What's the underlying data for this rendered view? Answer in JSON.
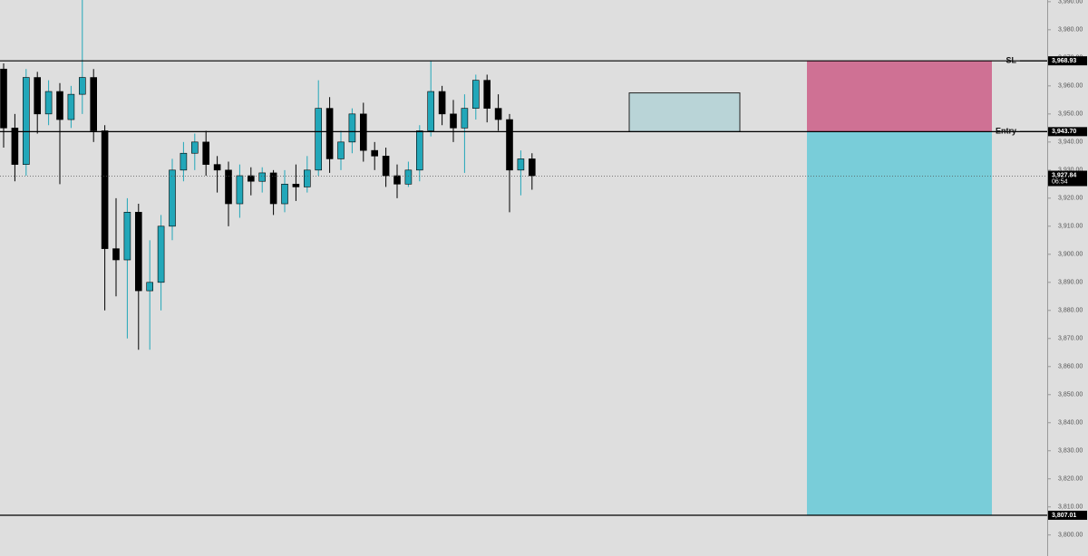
{
  "chart_data": {
    "type": "candlestick",
    "open": [
      3966,
      3945,
      3932,
      3963,
      3950,
      3958,
      3948,
      3957,
      3963,
      3944,
      3902,
      3898,
      3915,
      3887,
      3890,
      3910,
      3930,
      3936,
      3940,
      3932,
      3930,
      3918,
      3928,
      3926,
      3929,
      3918,
      3925,
      3924,
      3930,
      3952,
      3934,
      3940,
      3950,
      3937,
      3935,
      3928,
      3925,
      3930,
      3944,
      3958,
      3950,
      3945,
      3952,
      3962,
      3952,
      3948,
      3930,
      3934
    ],
    "high": [
      3968,
      3950,
      3966,
      3965,
      3962,
      3961,
      3960,
      3995,
      3966,
      3946,
      3920,
      3920,
      3918,
      3905,
      3914,
      3934,
      3940,
      3943,
      3944,
      3935,
      3933,
      3932,
      3931,
      3931,
      3930,
      3930,
      3932,
      3935,
      3962,
      3956,
      3944,
      3952,
      3954,
      3940,
      3938,
      3932,
      3933,
      3946,
      3969,
      3960,
      3955,
      3957,
      3964,
      3964,
      3957,
      3950,
      3937,
      3936
    ],
    "low": [
      3938,
      3926,
      3928,
      3943,
      3946,
      3925,
      3945,
      3950,
      3940,
      3880,
      3885,
      3870,
      3866,
      3866,
      3880,
      3905,
      3926,
      3930,
      3928,
      3922,
      3910,
      3913,
      3921,
      3922,
      3914,
      3915,
      3919,
      3922,
      3928,
      3929,
      3930,
      3936,
      3933,
      3930,
      3924,
      3920,
      3924,
      3926,
      3942,
      3946,
      3940,
      3929,
      3948,
      3947,
      3944,
      3915,
      3921,
      3923
    ],
    "close": [
      3945,
      3932,
      3963,
      3950,
      3958,
      3948,
      3957,
      3963,
      3944,
      3902,
      3898,
      3915,
      3887,
      3890,
      3910,
      3930,
      3936,
      3940,
      3932,
      3930,
      3918,
      3928,
      3926,
      3929,
      3918,
      3925,
      3924,
      3930,
      3952,
      3934,
      3940,
      3950,
      3937,
      3935,
      3928,
      3925,
      3930,
      3944,
      3958,
      3950,
      3945,
      3952,
      3962,
      3952,
      3948,
      3930,
      3934,
      3928
    ],
    "up_color": "#22a7b9",
    "down_color": "#000000",
    "ylim": [
      3792.5,
      3990.6
    ],
    "yticks": [
      {
        "value": 3800,
        "label": "3,800.00"
      },
      {
        "value": 3810,
        "label": "3,810.00"
      },
      {
        "value": 3820,
        "label": "3,820.00"
      },
      {
        "value": 3830,
        "label": "3,830.00"
      },
      {
        "value": 3840,
        "label": "3,840.00"
      },
      {
        "value": 3850,
        "label": "3,850.00"
      },
      {
        "value": 3860,
        "label": "3,860.00"
      },
      {
        "value": 3870,
        "label": "3,870.00"
      },
      {
        "value": 3880,
        "label": "3,880.00"
      },
      {
        "value": 3890,
        "label": "3,890.00"
      },
      {
        "value": 3900,
        "label": "3,900.00"
      },
      {
        "value": 3910,
        "label": "3,910.00"
      },
      {
        "value": 3920,
        "label": "3,920.00"
      },
      {
        "value": 3930,
        "label": "3,930.00"
      },
      {
        "value": 3940,
        "label": "3,940.00"
      },
      {
        "value": 3950,
        "label": "3,950.00"
      },
      {
        "value": 3960,
        "label": "3,960.00"
      },
      {
        "value": 3970,
        "label": "3,970.00"
      },
      {
        "value": 3980,
        "label": "3,980.00"
      },
      {
        "value": 3990,
        "label": "3,990.00"
      }
    ],
    "levels": [
      {
        "label": "SL",
        "value": 3968.93,
        "value_label": "3,968.93"
      },
      {
        "label": "Entry",
        "value": 3943.7,
        "value_label": "3,943.70"
      },
      {
        "value": 3807.01,
        "value_label": "3,807.01"
      }
    ],
    "current": {
      "value": 3927.84,
      "label": "3,927.84",
      "countdown": "06:54"
    },
    "stop_color": "#cf7194",
    "target_color": "#79cdd9",
    "zone": {
      "top": 3957.5,
      "bottom": 3943.7,
      "color": "#b9d4d7"
    }
  }
}
